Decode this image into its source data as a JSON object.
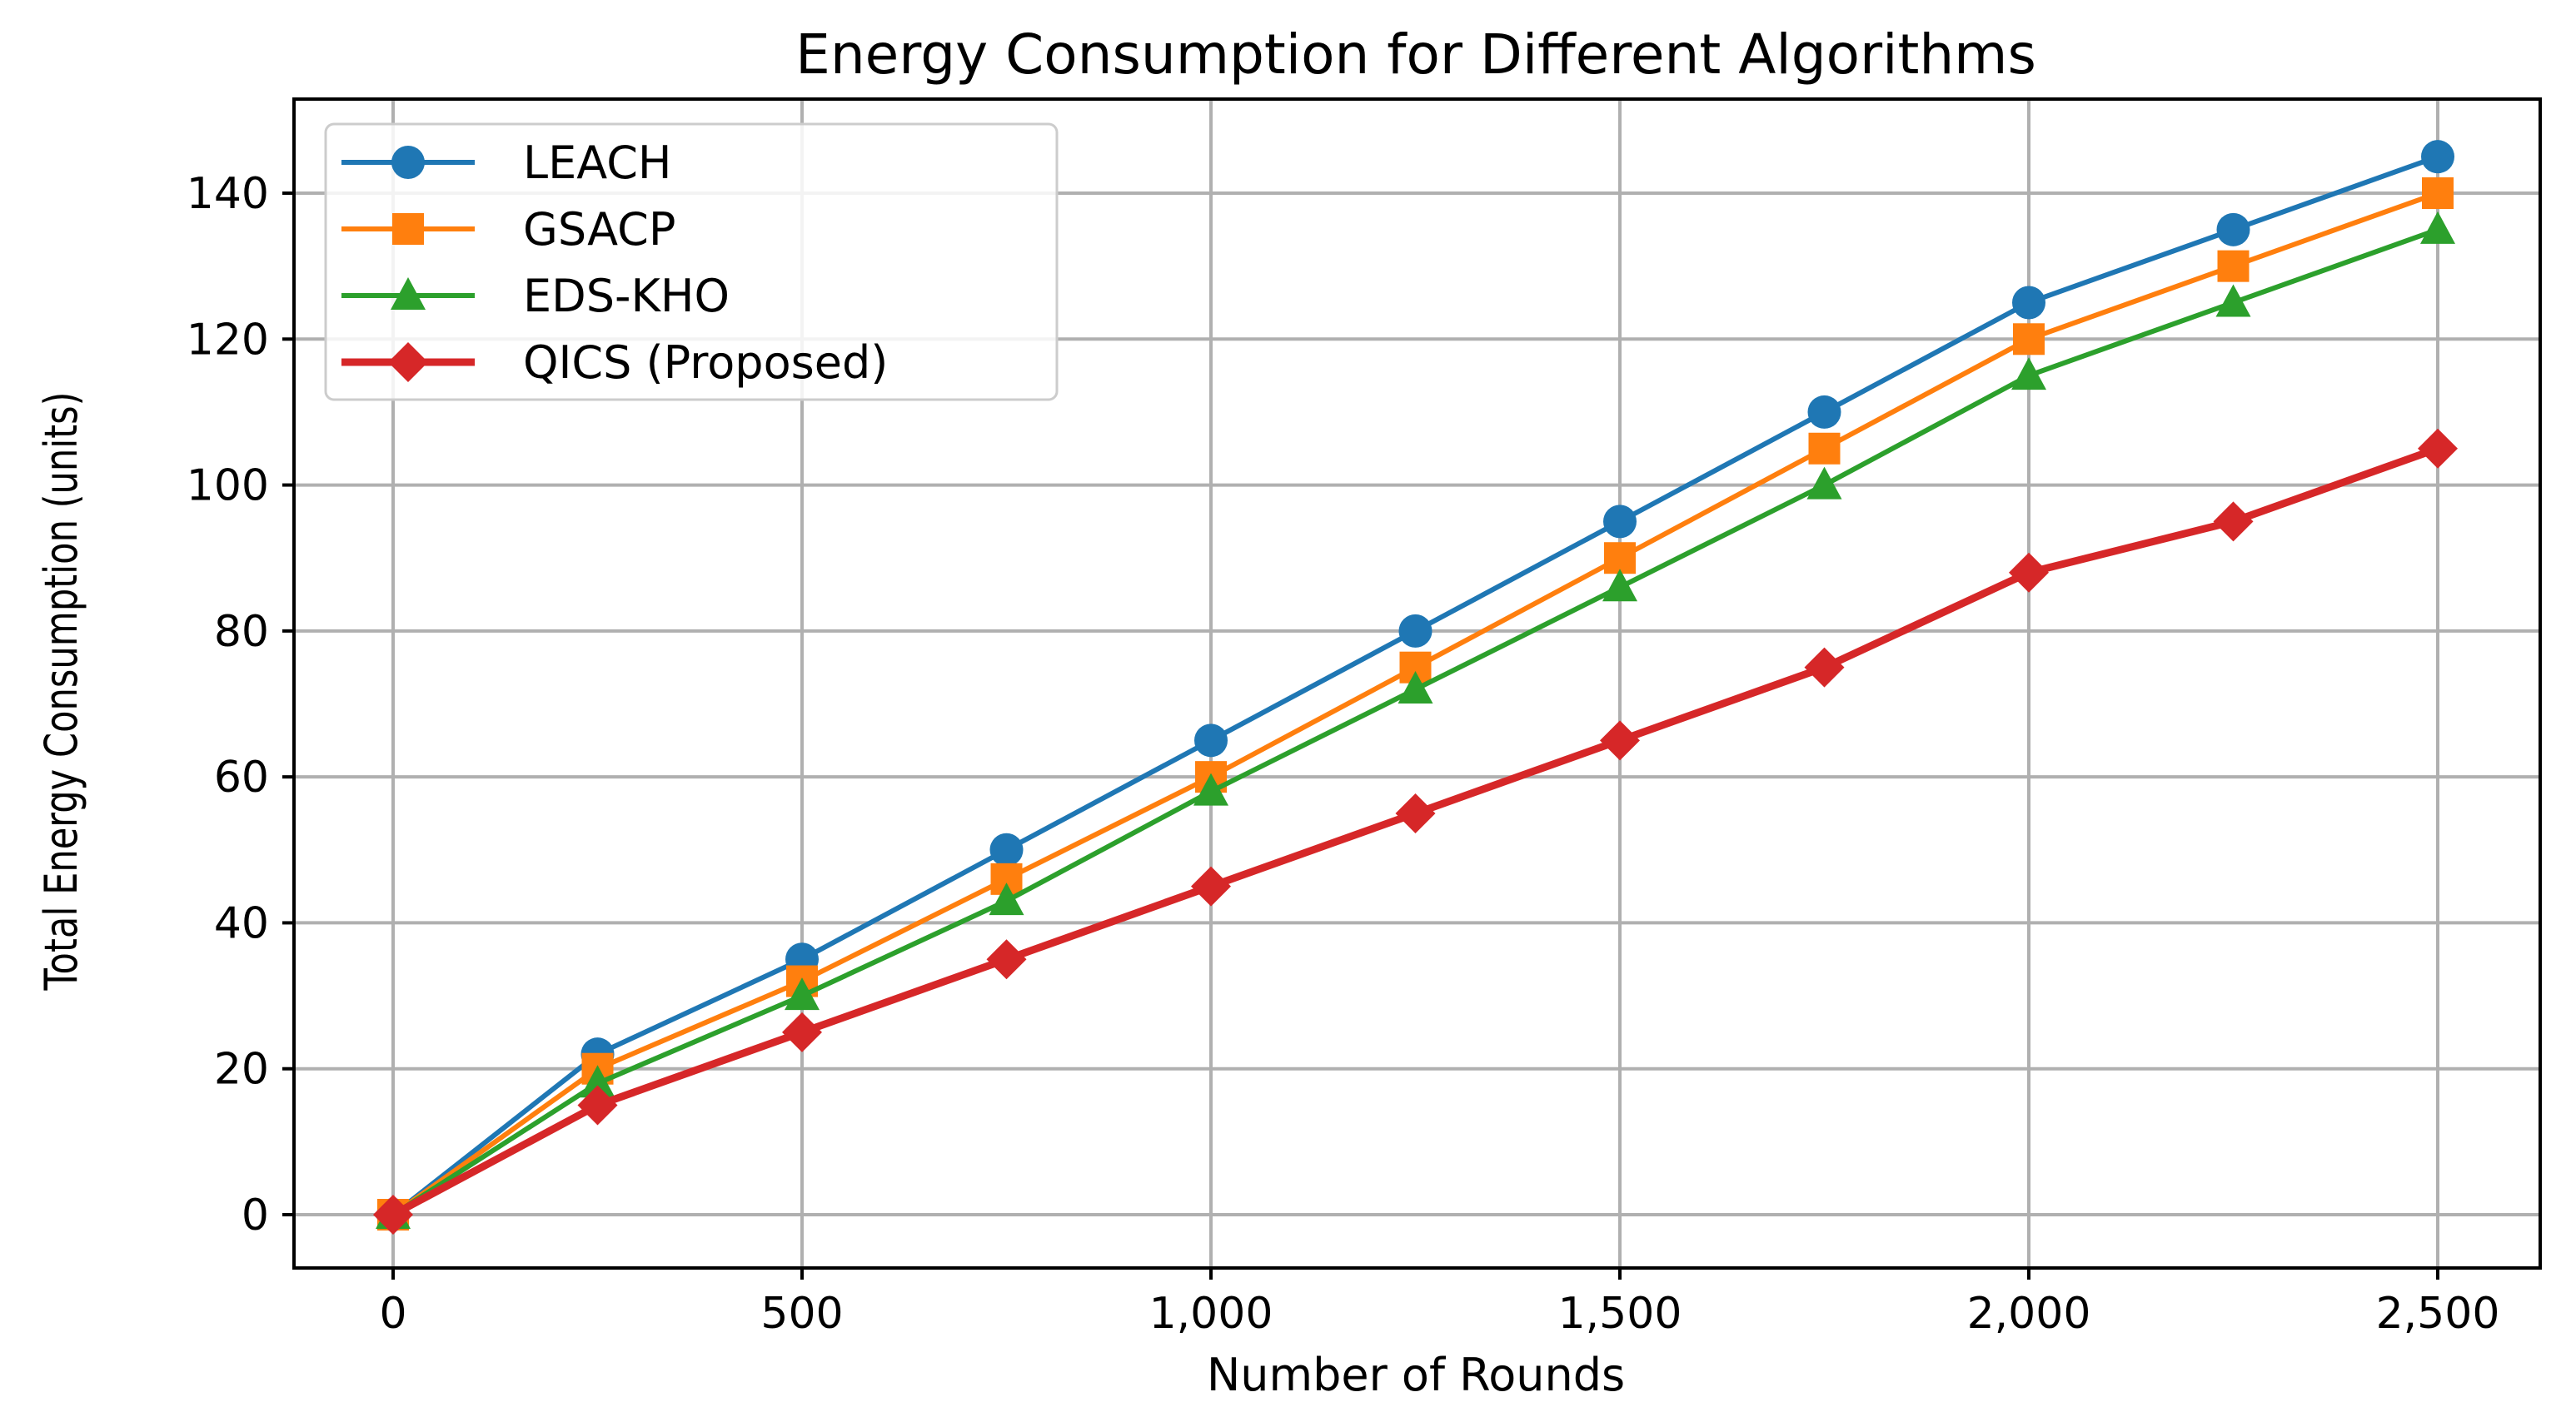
{
  "chart_data": {
    "type": "line",
    "title": "Energy Consumption for Different Algorithms",
    "xlabel": "Number of Rounds",
    "ylabel": "Total Energy Consumption (units)",
    "x": [
      0,
      250,
      500,
      750,
      1000,
      1250,
      1500,
      1750,
      2000,
      2250,
      2500
    ],
    "xlim": [
      -120,
      2620
    ],
    "ylim": [
      -7,
      152
    ],
    "xticks": [
      0,
      500,
      1000,
      1500,
      2000,
      2500
    ],
    "xtick_labels": [
      "0",
      "500",
      "1,000",
      "1,500",
      "2,000",
      "2,500"
    ],
    "yticks": [
      0,
      20,
      40,
      60,
      80,
      100,
      120,
      140
    ],
    "ytick_labels": [
      "0",
      "20",
      "40",
      "60",
      "80",
      "100",
      "120",
      "140"
    ],
    "grid": true,
    "legend_position": "top-left",
    "series": [
      {
        "name": "LEACH",
        "color": "#1f77b4",
        "marker": "circle",
        "values": [
          0,
          22,
          35,
          50,
          65,
          80,
          95,
          110,
          125,
          135,
          145
        ]
      },
      {
        "name": "GSACP",
        "color": "#ff7f0e",
        "marker": "square",
        "values": [
          0,
          20,
          32,
          46,
          60,
          75,
          90,
          105,
          120,
          130,
          140
        ]
      },
      {
        "name": "EDS-KHO",
        "color": "#2ca02c",
        "marker": "triangle",
        "values": [
          0,
          18,
          30,
          43,
          58,
          72,
          86,
          100,
          115,
          125,
          135
        ]
      },
      {
        "name": "QICS (Proposed)",
        "color": "#d62728",
        "marker": "diamond",
        "values": [
          0,
          15,
          25,
          35,
          45,
          55,
          65,
          75,
          88,
          95,
          105
        ]
      }
    ]
  }
}
